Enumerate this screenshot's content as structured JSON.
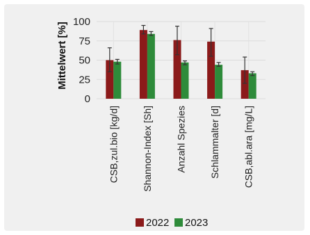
{
  "chart_data": {
    "type": "bar",
    "title": "",
    "xlabel": "",
    "ylabel": "Mittelwert [%]",
    "ylim": [
      0,
      100
    ],
    "yticks": [
      0,
      25,
      50,
      75,
      100
    ],
    "grid": true,
    "legend_position": "bottom",
    "categories": [
      "CSB,zul.bio [kg/d]",
      "Shannon-Index [Sh]",
      "Anzahl Spezies",
      "Schlammalter [d]",
      "CSB,abl.ara [mg/L]"
    ],
    "series": [
      {
        "name": "2022",
        "color": "#8b1a1a",
        "values": [
          50,
          89,
          76,
          74,
          37
        ],
        "error": [
          [
            35,
            66
          ],
          [
            84,
            95
          ],
          [
            57,
            94
          ],
          [
            55,
            91
          ],
          [
            20,
            54
          ]
        ]
      },
      {
        "name": "2023",
        "color": "#2e8b3a",
        "values": [
          48,
          84,
          47,
          44,
          33
        ],
        "error": [
          [
            45,
            51
          ],
          [
            82,
            87
          ],
          [
            44,
            49
          ],
          [
            42,
            47
          ],
          [
            30,
            35
          ]
        ]
      }
    ]
  }
}
